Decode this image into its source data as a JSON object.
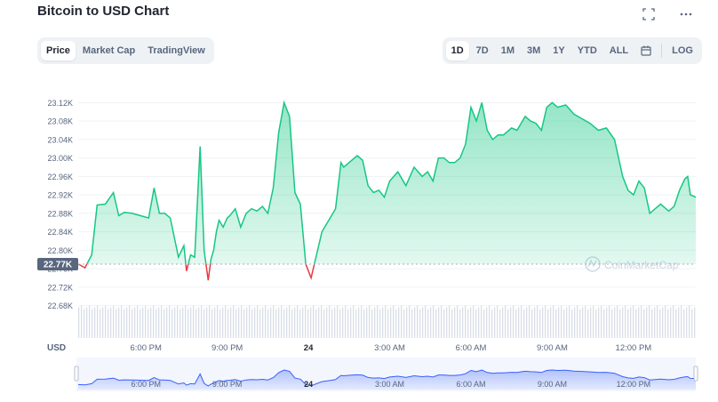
{
  "title": "Bitcoin to USD Chart",
  "icons": {
    "expand": "fullscreen-icon",
    "more": "more-icon"
  },
  "tabs": [
    {
      "label": "Price",
      "active": true
    },
    {
      "label": "Market Cap",
      "active": false
    },
    {
      "label": "TradingView",
      "active": false
    }
  ],
  "ranges": [
    {
      "label": "1D",
      "active": true
    },
    {
      "label": "7D",
      "active": false
    },
    {
      "label": "1M",
      "active": false
    },
    {
      "label": "3M",
      "active": false
    },
    {
      "label": "1Y",
      "active": false
    },
    {
      "label": "YTD",
      "active": false
    },
    {
      "label": "ALL",
      "active": false
    }
  ],
  "log_label": "LOG",
  "watermark": "CoinMarketCap",
  "currency_label": "USD",
  "colors": {
    "up": "#16c784",
    "down": "#ea3943",
    "accent": "#3861fb",
    "grid": "#eff2f5",
    "axis_text": "#58667e"
  },
  "chart_data": {
    "type": "area",
    "title": "Bitcoin to USD Chart",
    "ylabel": "USD",
    "ylim": [
      22660,
      23140
    ],
    "y_ticks": [
      "23.12K",
      "23.08K",
      "23.04K",
      "23.00K",
      "22.96K",
      "22.92K",
      "22.88K",
      "22.84K",
      "22.80K",
      "22.76K",
      "22.72K",
      "22.68K"
    ],
    "y_tick_values": [
      23120,
      23080,
      23040,
      23000,
      22960,
      22920,
      22880,
      22840,
      22800,
      22760,
      22720,
      22680
    ],
    "x_ticks": [
      "6:00 PM",
      "9:00 PM",
      "24",
      "3:00 AM",
      "6:00 AM",
      "9:00 AM",
      "12:00 PM"
    ],
    "x_tick_hours": [
      18,
      21,
      24,
      27,
      30,
      33,
      36
    ],
    "xlim_hours": [
      15.5,
      38.3
    ],
    "reference_value": 22770,
    "reference_label": "22.77K",
    "series": [
      {
        "x": [
          15.5,
          15.75,
          16.0,
          16.2,
          16.5,
          16.8,
          17.0,
          17.2,
          17.5,
          17.8,
          18.1,
          18.3,
          18.5,
          18.7,
          18.9,
          19.2,
          19.4,
          19.5,
          19.65,
          19.8,
          20.0,
          20.15,
          20.3,
          20.4,
          20.5,
          20.6,
          20.7,
          20.85,
          21.0,
          21.1,
          21.3,
          21.5,
          21.7,
          21.9,
          22.1,
          22.3,
          22.5,
          22.7,
          22.9,
          23.1,
          23.3,
          23.5,
          23.7,
          23.9,
          24.1,
          24.3,
          24.5,
          24.8,
          25.0,
          25.2,
          25.3,
          25.4,
          25.6,
          25.8,
          26.0,
          26.2,
          26.4,
          26.6,
          26.8,
          27.0,
          27.3,
          27.6,
          27.9,
          28.2,
          28.4,
          28.6,
          28.8,
          29.0,
          29.2,
          29.4,
          29.6,
          29.8,
          30.0,
          30.2,
          30.4,
          30.6,
          30.8,
          31.0,
          31.2,
          31.5,
          31.7,
          32.0,
          32.2,
          32.4,
          32.6,
          32.8,
          33.0,
          33.2,
          33.5,
          33.8,
          34.1,
          34.4,
          34.7,
          35.0,
          35.3,
          35.6,
          35.8,
          36.0,
          36.2,
          36.4,
          36.6,
          36.8,
          37.0,
          37.3,
          37.5,
          37.7,
          37.9,
          38.0,
          38.1,
          38.3
        ],
        "y": [
          22770,
          22762,
          22790,
          22898,
          22900,
          22925,
          22875,
          22882,
          22880,
          22875,
          22870,
          22935,
          22880,
          22880,
          22870,
          22785,
          22810,
          22755,
          22790,
          22785,
          23025,
          22800,
          22735,
          22780,
          22800,
          22840,
          22865,
          22850,
          22870,
          22875,
          22890,
          22850,
          22880,
          22890,
          22885,
          22895,
          22880,
          22935,
          23055,
          23120,
          23090,
          22925,
          22900,
          22770,
          22740,
          22790,
          22840,
          22870,
          22890,
          22990,
          22980,
          22985,
          22995,
          23005,
          22995,
          22940,
          22925,
          22930,
          22915,
          22950,
          22970,
          22940,
          22980,
          22960,
          22970,
          22950,
          23000,
          23000,
          22990,
          22990,
          23000,
          23030,
          23110,
          23080,
          23120,
          23060,
          23040,
          23050,
          23050,
          23065,
          23060,
          23090,
          23080,
          23075,
          23060,
          23110,
          23120,
          23110,
          23115,
          23095,
          23085,
          23075,
          23060,
          23065,
          23040,
          22960,
          22930,
          22920,
          22950,
          22935,
          22880,
          22890,
          22900,
          22885,
          22895,
          22930,
          22955,
          22960,
          22920,
          22915
        ],
        "color": "#16c784"
      }
    ],
    "volume_bars": true,
    "grid": true,
    "legend": "none"
  }
}
